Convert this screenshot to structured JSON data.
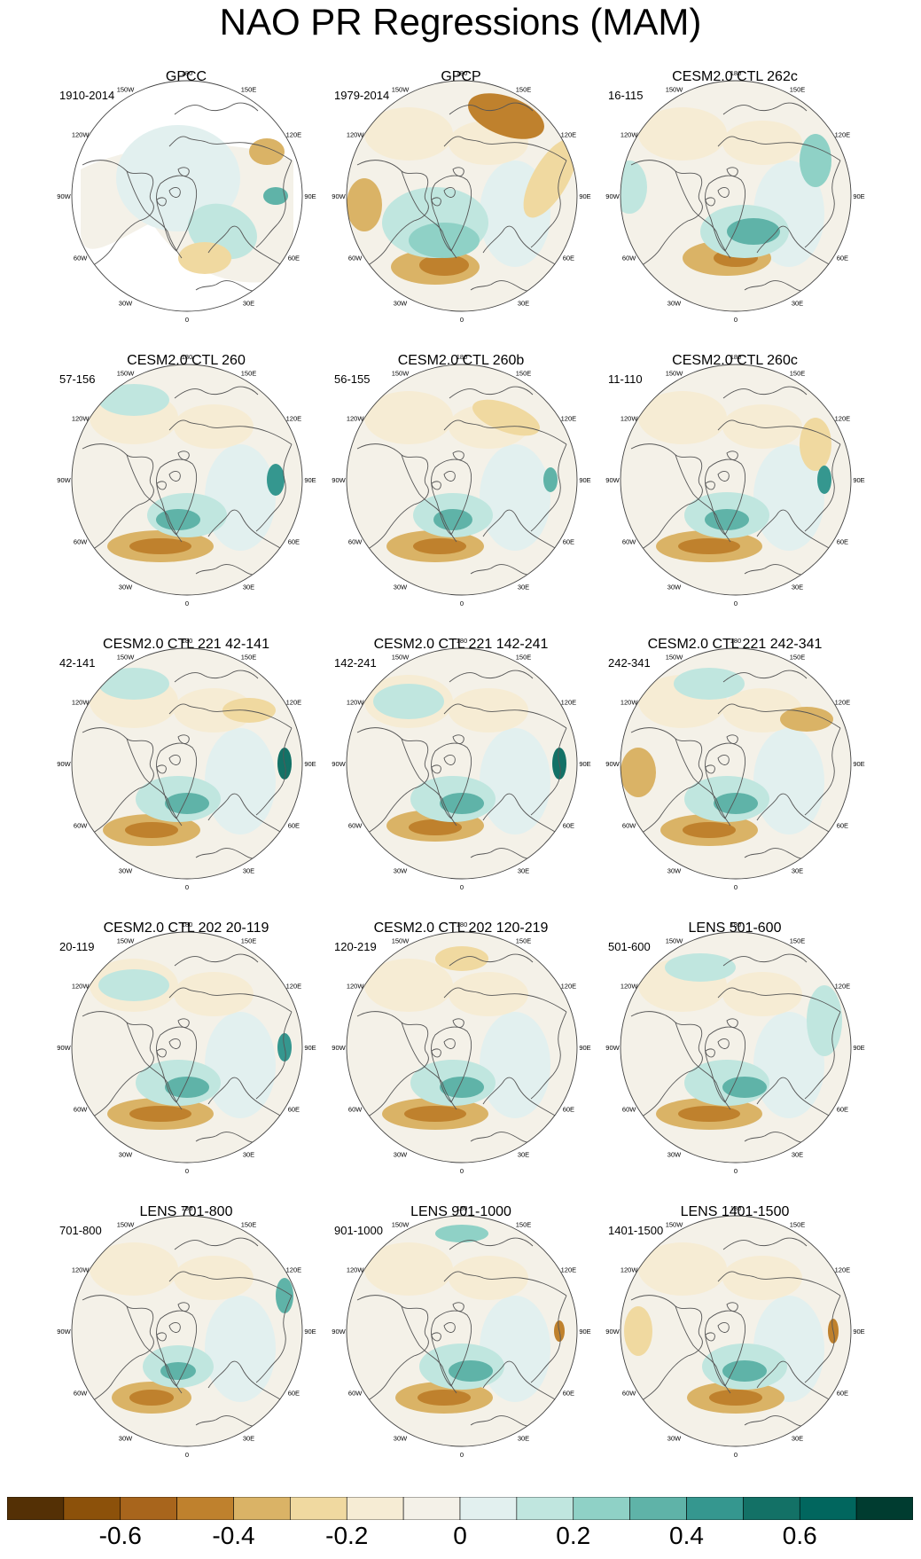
{
  "title": "NAO PR Regressions (MAM)",
  "panels": [
    {
      "title": "GPCC",
      "period": "1910-2014",
      "land_only": true
    },
    {
      "title": "GPCP",
      "period": "1979-2014"
    },
    {
      "title": "CESM2.0 CTL 262c",
      "period": "16-115"
    },
    {
      "title": "CESM2.0 CTL 260",
      "period": "57-156"
    },
    {
      "title": "CESM2.0 CTL 260b",
      "period": "56-155"
    },
    {
      "title": "CESM2.0 CTL 260c",
      "period": "11-110"
    },
    {
      "title": "CESM2.0 CTL 221 42-141",
      "period": "42-141"
    },
    {
      "title": "CESM2.0 CTL 221 142-241",
      "period": "142-241"
    },
    {
      "title": "CESM2.0 CTL 221 242-341",
      "period": "242-341"
    },
    {
      "title": "CESM2.0 CTL 202 20-119",
      "period": "20-119"
    },
    {
      "title": "CESM2.0 CTL 202 120-219",
      "period": "120-219"
    },
    {
      "title": "LENS 501-600",
      "period": "501-600"
    },
    {
      "title": "LENS 701-800",
      "period": "701-800"
    },
    {
      "title": "LENS 901-1000",
      "period": "901-1000"
    },
    {
      "title": "LENS 1401-1500",
      "period": "1401-1500"
    }
  ],
  "lon_labels": {
    "top": "180",
    "bottom": "0",
    "upper_left": "150W",
    "upper_right": "150E",
    "mid_upper_left": "120W",
    "mid_upper_right": "120E",
    "left": "90W",
    "right": "90E",
    "mid_lower_left": "60W",
    "mid_lower_right": "60E",
    "lower_left": "30W",
    "lower_right": "30E"
  },
  "colorbar": {
    "colors": [
      "#543005",
      "#8c510a",
      "#a8651c",
      "#bf812d",
      "#dab366",
      "#f0d9a0",
      "#f6ecd4",
      "#f4f1e8",
      "#e2f0ef",
      "#c0e6df",
      "#8fd1c6",
      "#5fb3a8",
      "#35978f",
      "#137166",
      "#01665e",
      "#003c30"
    ],
    "tick_labels": [
      "-0.6",
      "-0.4",
      "-0.2",
      "0",
      "0.2",
      "0.4",
      "0.6"
    ],
    "tick_values": [
      -0.6,
      -0.4,
      -0.2,
      0,
      0.2,
      0.4,
      0.6
    ]
  }
}
